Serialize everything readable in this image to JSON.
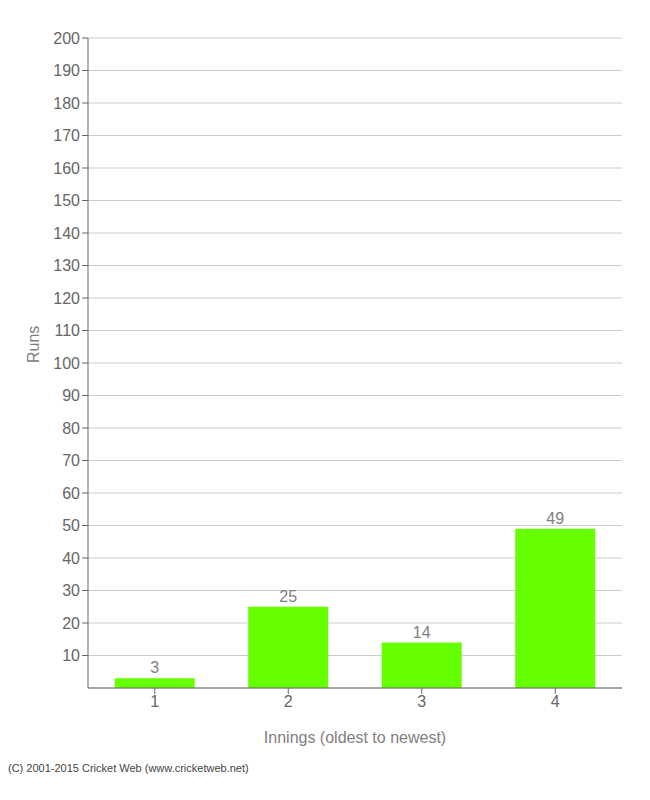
{
  "chart_data": {
    "type": "bar",
    "categories": [
      "1",
      "2",
      "3",
      "4"
    ],
    "values": [
      3,
      25,
      14,
      49
    ],
    "color": "#66ff00",
    "xlabel": "Innings (oldest to newest)",
    "ylabel": "Runs",
    "ylim": [
      0,
      200
    ],
    "yticks": [
      10,
      20,
      30,
      40,
      50,
      60,
      70,
      80,
      90,
      100,
      110,
      120,
      130,
      140,
      150,
      160,
      170,
      180,
      190,
      200
    ],
    "grid": true,
    "data_labels": true,
    "annotations": [
      "(C) 2001-2015 Cricket Web (www.cricketweb.net)"
    ]
  }
}
